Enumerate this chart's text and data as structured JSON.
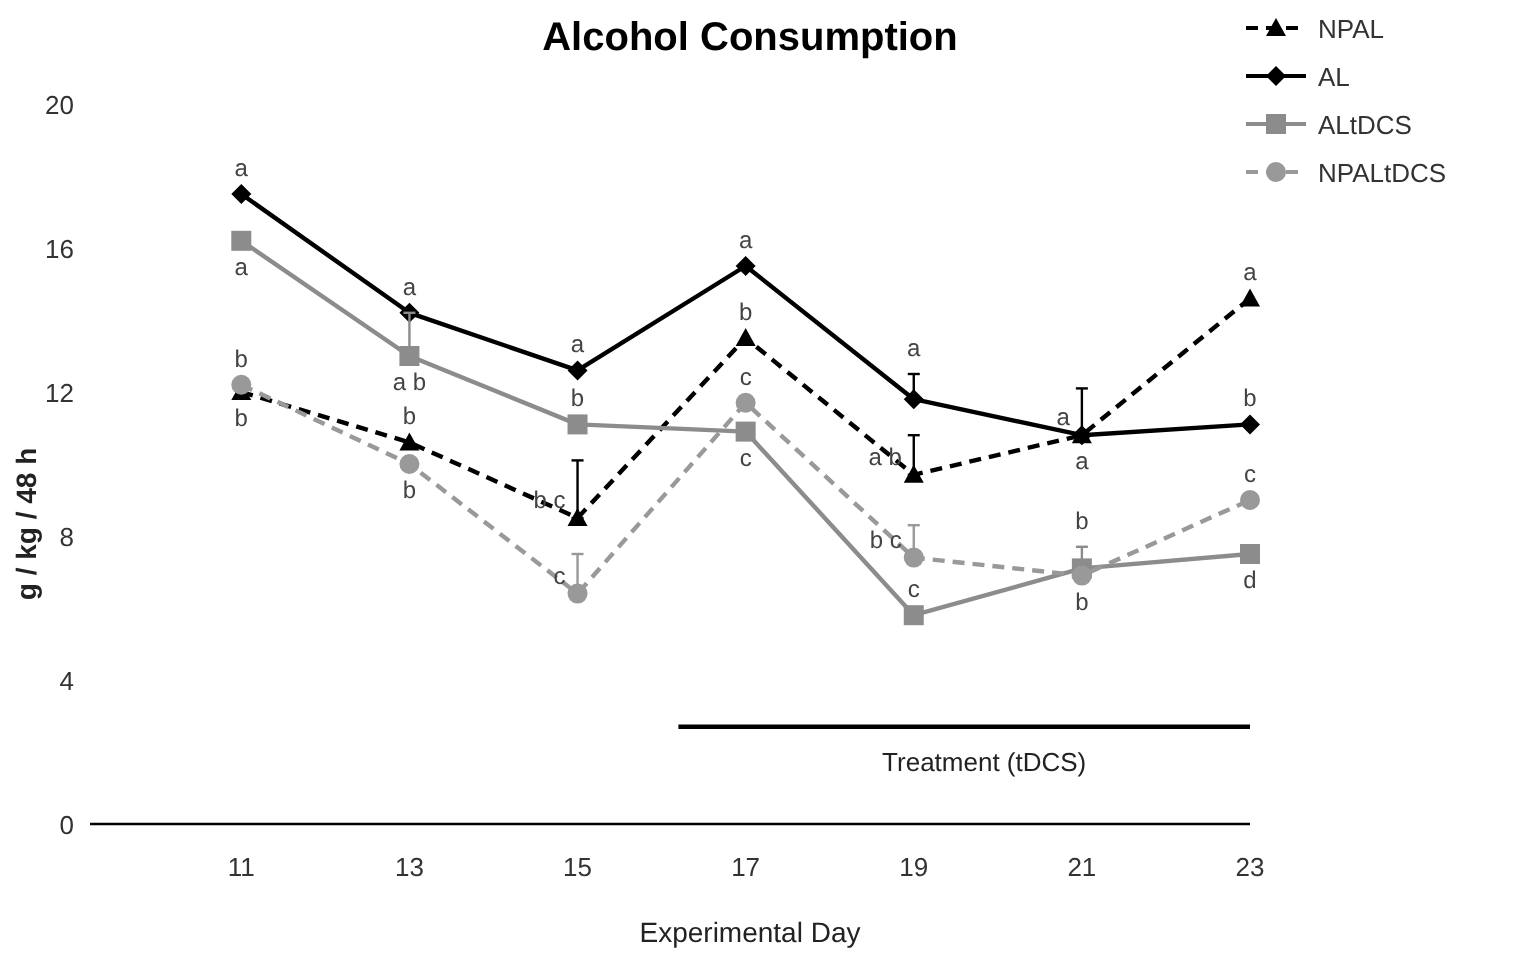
{
  "chart_data": {
    "type": "line",
    "title": "Alcohol Consumption",
    "xlabel": "Experimental Day",
    "ylabel": "g / kg / 48 h",
    "x": [
      11,
      13,
      15,
      17,
      19,
      21,
      23
    ],
    "xlim": [
      9.2,
      23
    ],
    "xticks": [
      11,
      13,
      15,
      17,
      19,
      21,
      23
    ],
    "ylim": [
      0,
      20
    ],
    "yticks": [
      0,
      4,
      8,
      12,
      16,
      20
    ],
    "grid": false,
    "legend": "top right",
    "series": [
      {
        "name": "NPAL",
        "color": "#000000",
        "marker": "triangle",
        "line_style": "dashed",
        "values": [
          12.0,
          10.6,
          8.5,
          13.5,
          9.7,
          10.8,
          14.6
        ],
        "errors": [
          null,
          null,
          [
            8.5,
            10.1
          ],
          null,
          [
            9.7,
            10.8
          ],
          null,
          null
        ],
        "value_labels": [
          "b",
          "b",
          "b c",
          "b",
          "a b",
          "a",
          "a"
        ]
      },
      {
        "name": "AL",
        "color": "#000000",
        "marker": "diamond",
        "line_style": "solid",
        "values": [
          17.5,
          14.2,
          12.6,
          15.5,
          11.8,
          10.8,
          11.1
        ],
        "errors": [
          null,
          null,
          null,
          null,
          [
            11.8,
            12.5
          ],
          [
            10.8,
            12.1
          ],
          null
        ],
        "value_labels": [
          "a",
          "a",
          "a",
          "a",
          "a",
          "a",
          "b"
        ]
      },
      {
        "name": "ALtDCS",
        "color": "#8c8c8c",
        "marker": "square",
        "line_style": "solid",
        "values": [
          16.2,
          13.0,
          11.1,
          10.9,
          5.8,
          7.1,
          7.5
        ],
        "errors": [
          null,
          [
            13.0,
            14.2
          ],
          null,
          null,
          null,
          [
            7.1,
            7.7
          ],
          null
        ],
        "value_labels": [
          "a",
          "a b",
          "b",
          "c",
          "c",
          "b",
          "d"
        ]
      },
      {
        "name": "NPALtDCS",
        "color": "#999999",
        "marker": "circle",
        "line_style": "dashed",
        "values": [
          12.2,
          10.0,
          6.4,
          11.7,
          7.4,
          6.9,
          9.0
        ],
        "errors": [
          null,
          null,
          [
            6.4,
            7.5
          ],
          null,
          [
            7.4,
            8.3
          ],
          null,
          null
        ],
        "value_labels": [
          "b",
          "b",
          "c",
          "c",
          "b c",
          "b",
          "c"
        ]
      },
      {
        "type": "line",
        "color": "#000000",
        "marker": "none",
        "line_style": "solid",
        "x": [
          16.2,
          23
        ],
        "values": [
          2.7,
          2.7
        ]
      }
    ],
    "annotations": [
      "Treatment (tDCS)"
    ]
  }
}
